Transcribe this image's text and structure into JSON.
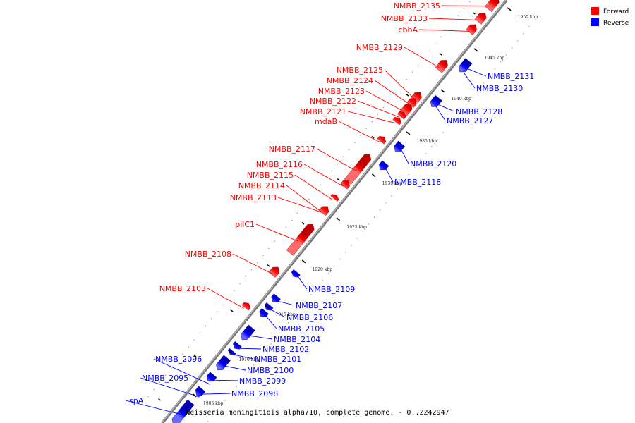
{
  "caption": "Neisseria meningitidis alpha710, complete genome. - 0..2242947",
  "legend": [
    {
      "label": "Forward",
      "color": "#ff0000"
    },
    {
      "label": "Reverse",
      "color": "#0000ff"
    }
  ],
  "colors": {
    "forward": "#ff0000",
    "reverse": "#0000ff",
    "backbone": "#999999"
  },
  "ticks": [
    "1905 kbp",
    "1910 kbp",
    "1915 kbp",
    "1920 kbp",
    "1925 kbp",
    "1930 kbp",
    "1935 kbp",
    "1940 kbp",
    "1945 kbp",
    "1950 kbp"
  ],
  "forward_genes": [
    "NMBB_2135",
    "NMBB_2133",
    "cbbA",
    "NMBB_2129",
    "NMBB_2125",
    "NMBB_2124",
    "NMBB_2123",
    "NMBB_2122",
    "NMBB_2121",
    "mdaB",
    "NMBB_2117",
    "NMBB_2116",
    "NMBB_2115",
    "NMBB_2114",
    "NMBB_2113",
    "pilC1",
    "NMBB_2108",
    "NMBB_2103"
  ],
  "reverse_genes": [
    "NMBB_2131",
    "NMBB_2130",
    "NMBB_2128",
    "NMBB_2127",
    "NMBB_2120",
    "NMBB_2118",
    "NMBB_2109",
    "NMBB_2107",
    "NMBB_2106",
    "NMBB_2105",
    "NMBB_2104",
    "NMBB_2102",
    "NMBB_2101",
    "NMBB_2100",
    "NMBB_2099",
    "NMBB_2098",
    "NMBB_2096",
    "NMBB_2095",
    "lspA"
  ]
}
